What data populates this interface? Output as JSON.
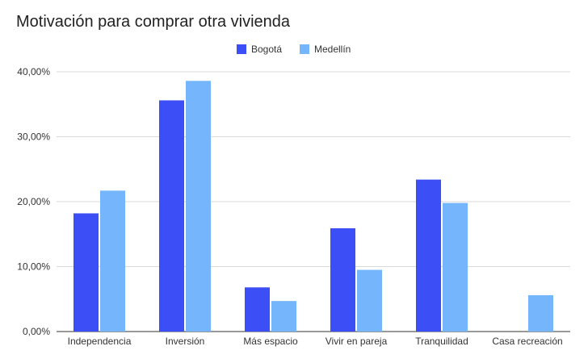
{
  "chart_data": {
    "type": "bar",
    "title": "Motivación para comprar otra vivienda",
    "categories": [
      "Independencia",
      "Inversión",
      "Más espacio",
      "Vivir en pareja",
      "Tranquilidad",
      "Casa recreación"
    ],
    "series": [
      {
        "name": "Bogotá",
        "color": "#3c4ef5",
        "values": [
          18.2,
          35.6,
          6.8,
          15.9,
          23.4,
          0
        ]
      },
      {
        "name": "Medellín",
        "color": "#74b5fb",
        "values": [
          21.7,
          38.6,
          4.7,
          9.5,
          19.8,
          5.6
        ]
      }
    ],
    "ylim": [
      0,
      40
    ],
    "yticks": [
      0,
      10,
      20,
      30,
      40
    ],
    "ytick_labels": [
      "0,00%",
      "10,00%",
      "20,00%",
      "30,00%",
      "40,00%"
    ],
    "grid": true,
    "legend_position": "top-center"
  }
}
